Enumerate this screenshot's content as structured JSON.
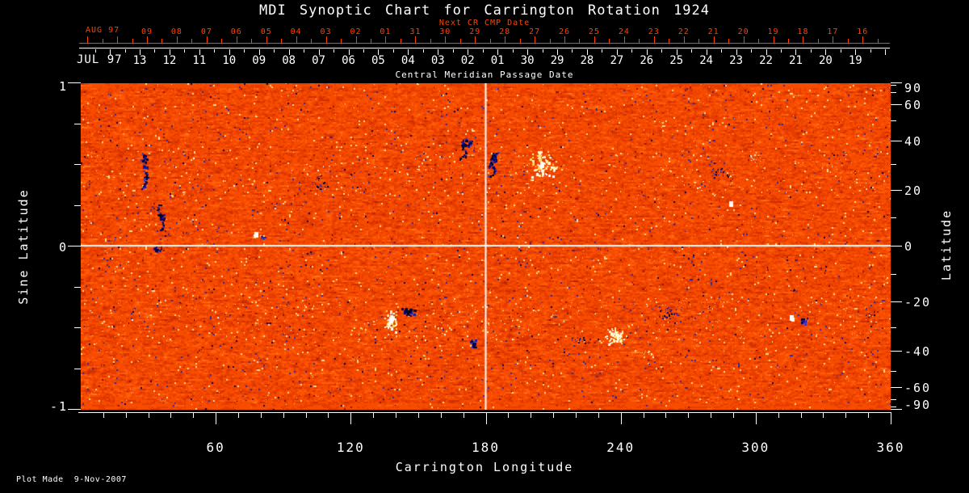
{
  "title": "MDI Synoptic Chart for Carrington Rotation 1924",
  "annotations": {
    "next_cr": "Next CR CMP Date",
    "cmp": "Central Meridian Passage Date",
    "plot_made": "Plot Made  9-Nov-2007"
  },
  "axes": {
    "top_red": {
      "month": "AUG 97",
      "days": [
        "09",
        "08",
        "07",
        "06",
        "05",
        "04",
        "03",
        "02",
        "01",
        "31",
        "30",
        "29",
        "28",
        "27",
        "26",
        "25",
        "24",
        "23",
        "22",
        "21",
        "20",
        "19",
        "18",
        "17",
        "16"
      ]
    },
    "top_white": {
      "month": "JUL 97",
      "days": [
        "13",
        "12",
        "11",
        "10",
        "09",
        "08",
        "07",
        "06",
        "05",
        "04",
        "03",
        "02",
        "01",
        "30",
        "29",
        "28",
        "27",
        "26",
        "25",
        "24",
        "23",
        "22",
        "21",
        "20",
        "19"
      ]
    },
    "left": {
      "label": "Sine Latitude",
      "ticks": [
        "1",
        "0",
        "-1"
      ]
    },
    "right": {
      "label": "Latitude",
      "ticks": [
        "90",
        "60",
        "40",
        "20",
        "0",
        "-20",
        "-40",
        "-60",
        "-90"
      ]
    },
    "bottom": {
      "label": "Carrington Longitude",
      "ticks": [
        "60",
        "120",
        "180",
        "240",
        "300",
        "360"
      ]
    }
  },
  "colors": {
    "background": "#000000",
    "foreground": "#ffffff",
    "accent_red": "#ff4200",
    "map_quiet_orange": "#f74c00",
    "map_dark_red": "#b42300",
    "positive_polarity_white": "#ffffff",
    "positive_polarity_yellow": "#ffd95e",
    "negative_polarity_navy": "#1717a8",
    "negative_polarity_dark": "#000042"
  },
  "chart_data": {
    "type": "heatmap",
    "title": "MDI Synoptic Chart for Carrington Rotation 1924",
    "xlabel": "Carrington Longitude",
    "ylabel_left": "Sine Latitude",
    "ylabel_right": "Latitude",
    "xlim": [
      0,
      360
    ],
    "ylim_sine_latitude": [
      -1,
      1
    ],
    "xticks": [
      60,
      120,
      180,
      240,
      300,
      360
    ],
    "left_yticks_sine": [
      1,
      0,
      -1
    ],
    "right_yticks_degrees": [
      90,
      60,
      40,
      20,
      0,
      -20,
      -40,
      -60,
      -90
    ],
    "grid_crosshair": {
      "longitude": 180,
      "sine_latitude": 0
    },
    "top_axis_cmp_dates": {
      "month_label": "JUL 97",
      "days": [
        "13",
        "12",
        "11",
        "10",
        "09",
        "08",
        "07",
        "06",
        "05",
        "04",
        "03",
        "02",
        "01",
        "30",
        "29",
        "28",
        "27",
        "26",
        "25",
        "24",
        "23",
        "22",
        "21",
        "20",
        "19"
      ],
      "first_day_longitude": 26.2,
      "lon_per_day_degrees": 13.26
    },
    "top_axis_next_cr_dates": {
      "month_label": "AUG 97",
      "days": [
        "09",
        "08",
        "07",
        "06",
        "05",
        "04",
        "03",
        "02",
        "01",
        "31",
        "30",
        "29",
        "28",
        "27",
        "26",
        "25",
        "24",
        "23",
        "22",
        "21",
        "20",
        "19",
        "18",
        "17",
        "16"
      ],
      "first_day_longitude": 29.4,
      "lon_per_day_degrees": 13.26
    },
    "colormap": {
      "quiet_sun": "orange-red noise",
      "positive_polarity": "white / pale yellow",
      "negative_polarity": "dark blue / black"
    },
    "active_regions": [
      {
        "lon": 172,
        "lat": 36,
        "pol": "neg",
        "style": "chain",
        "rx": 10,
        "ry": 13,
        "n": 55
      },
      {
        "lon": 184,
        "lat": 30,
        "pol": "neg",
        "style": "chain",
        "rx": 11,
        "ry": 16,
        "n": 70
      },
      {
        "lon": 205,
        "lat": 30,
        "pol": "pos",
        "style": "blob",
        "rx": 20,
        "ry": 18,
        "n": 95,
        "bright": 1
      },
      {
        "lon": 138,
        "lat": -27,
        "pol": "pos",
        "style": "blob",
        "rx": 7,
        "ry": 13,
        "n": 60,
        "bright": 1
      },
      {
        "lon": 146,
        "lat": -24,
        "pol": "neg",
        "style": "blob",
        "rx": 9,
        "ry": 8,
        "n": 40
      },
      {
        "lon": 174,
        "lat": -37,
        "pol": "neg",
        "style": "chain",
        "rx": 9,
        "ry": 4,
        "n": 25
      },
      {
        "lon": 238,
        "lat": -33,
        "pol": "pos",
        "style": "blob",
        "rx": 15,
        "ry": 11,
        "n": 70,
        "bright": 0.6
      },
      {
        "lon": 262,
        "lat": -24,
        "pol": "neg",
        "style": "dots",
        "rx": 15,
        "ry": 12,
        "n": 50
      },
      {
        "lon": 316,
        "lat": -26,
        "pol": "pos",
        "style": "blob",
        "rx": 4,
        "ry": 3,
        "n": 14,
        "bright": 1
      },
      {
        "lon": 321,
        "lat": -27,
        "pol": "neg",
        "style": "blob",
        "rx": 6,
        "ry": 5,
        "n": 22
      },
      {
        "lon": 317,
        "lat": -16,
        "pol": "neg",
        "style": "dots",
        "rx": 4,
        "ry": 3,
        "n": 8
      },
      {
        "lon": 78,
        "lat": 4,
        "pol": "pos",
        "style": "blob",
        "rx": 3,
        "ry": 3,
        "n": 10,
        "bright": 1
      },
      {
        "lon": 81,
        "lat": 3,
        "pol": "neg",
        "style": "blob",
        "rx": 3,
        "ry": 3,
        "n": 12
      },
      {
        "lon": 26,
        "lat": 24,
        "pol": "neg",
        "style": "chain",
        "rx": 10,
        "ry": 34,
        "n": 70
      },
      {
        "lon": 34,
        "lat": 10,
        "pol": "neg",
        "style": "chain",
        "rx": 8,
        "ry": 16,
        "n": 40
      },
      {
        "lon": 34,
        "lat": -1,
        "pol": "neg",
        "style": "blob",
        "rx": 6,
        "ry": 5,
        "n": 18
      },
      {
        "lon": 106,
        "lat": 22,
        "pol": "neg",
        "style": "dots",
        "rx": 12,
        "ry": 14,
        "n": 28
      },
      {
        "lon": 284,
        "lat": 27,
        "pol": "neg",
        "style": "dots",
        "rx": 16,
        "ry": 12,
        "n": 30
      },
      {
        "lon": 289,
        "lat": 15,
        "pol": "pos",
        "style": "blob",
        "rx": 3,
        "ry": 3,
        "n": 8,
        "bright": 1
      },
      {
        "lon": 300,
        "lat": 33,
        "pol": "pos",
        "style": "dots",
        "rx": 10,
        "ry": 6,
        "n": 15,
        "bright": 0.4
      },
      {
        "lon": 351,
        "lat": -25,
        "pol": "neg",
        "style": "dots",
        "rx": 8,
        "ry": 4,
        "n": 12
      },
      {
        "lon": 222,
        "lat": -35,
        "pol": "neg",
        "style": "dots",
        "rx": 8,
        "ry": 6,
        "n": 15
      },
      {
        "lon": 252,
        "lat": -41,
        "pol": "pos",
        "style": "dots",
        "rx": 10,
        "ry": 5,
        "n": 14,
        "bright": 0.5
      }
    ],
    "speckle_belts": [
      {
        "lat": 27,
        "half_width": 9,
        "n": 260
      },
      {
        "lat": -27,
        "half_width": 9,
        "n": 260
      }
    ]
  }
}
